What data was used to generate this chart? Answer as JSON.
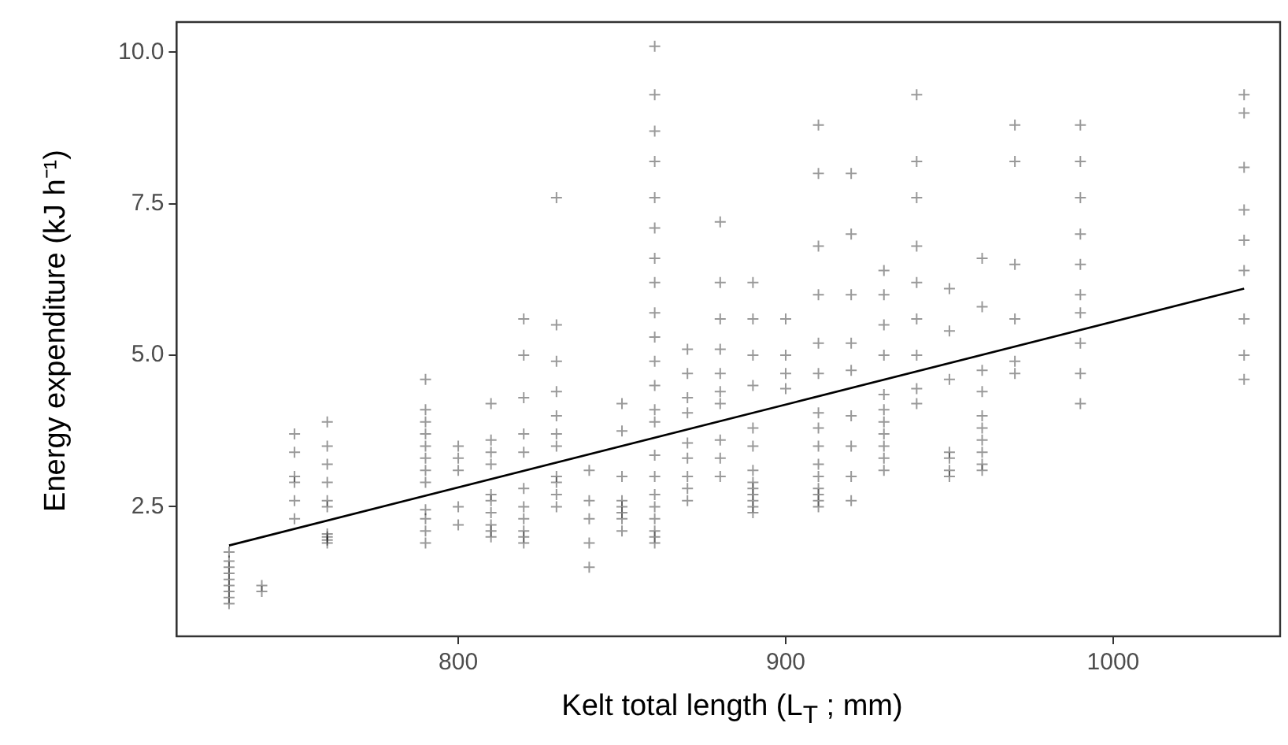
{
  "chart_data": {
    "type": "scatter",
    "xlabel": "Kelt total length (L$_{T}$ ; mm)",
    "ylabel": "Energy expenditure (kJ h⁻¹)",
    "xlim": [
      714,
      1051
    ],
    "ylim": [
      0.36,
      10.5
    ],
    "xticks": [
      800,
      900,
      1000
    ],
    "yticks": [
      2.5,
      {
        "value": 5,
        "label": "5.0"
      },
      7.5,
      {
        "value": 10,
        "label": "10.0"
      }
    ],
    "grid": false,
    "legend": false,
    "marker": "cross",
    "series": [
      {
        "color": "#000000",
        "x": [
          730,
          730,
          730,
          730,
          730,
          730,
          730,
          730,
          730,
          740,
          740,
          750,
          750,
          750,
          750,
          750,
          750,
          760,
          760,
          760,
          760,
          760,
          760,
          760,
          760,
          760,
          760,
          790,
          790,
          790,
          790,
          790,
          790,
          790,
          790,
          790,
          790,
          790,
          790,
          800,
          800,
          800,
          800,
          800,
          810,
          810,
          810,
          810,
          810,
          810,
          810,
          810,
          810,
          810,
          820,
          820,
          820,
          820,
          820,
          820,
          820,
          820,
          820,
          820,
          820,
          830,
          830,
          830,
          830,
          830,
          830,
          830,
          830,
          830,
          830,
          830,
          840,
          840,
          840,
          840,
          840,
          850,
          850,
          850,
          850,
          850,
          850,
          850,
          850,
          860,
          860,
          860,
          860,
          860,
          860,
          860,
          860,
          860,
          860,
          860,
          860,
          860,
          860,
          860,
          860,
          860,
          860,
          860,
          860,
          860,
          860,
          870,
          870,
          870,
          870,
          870,
          870,
          870,
          870,
          870,
          880,
          880,
          880,
          880,
          880,
          880,
          880,
          880,
          880,
          880,
          890,
          890,
          890,
          890,
          890,
          890,
          890,
          890,
          890,
          890,
          890,
          890,
          890,
          900,
          900,
          900,
          900,
          910,
          910,
          910,
          910,
          910,
          910,
          910,
          910,
          910,
          910,
          910,
          910,
          910,
          910,
          910,
          920,
          920,
          920,
          920,
          920,
          920,
          920,
          920,
          920,
          930,
          930,
          930,
          930,
          930,
          930,
          930,
          930,
          930,
          930,
          930,
          940,
          940,
          940,
          940,
          940,
          940,
          940,
          940,
          940,
          950,
          950,
          950,
          950,
          950,
          950,
          950,
          960,
          960,
          960,
          960,
          960,
          960,
          960,
          960,
          960,
          960,
          970,
          970,
          970,
          970,
          970,
          970,
          990,
          990,
          990,
          990,
          990,
          990,
          990,
          990,
          990,
          990,
          1040,
          1040,
          1040,
          1040,
          1040,
          1040,
          1040,
          1040,
          1040
        ],
        "values": [
          0.9,
          1.0,
          1.1,
          1.2,
          1.3,
          1.4,
          1.5,
          1.6,
          1.75,
          1.1,
          1.2,
          2.3,
          2.6,
          2.9,
          3.0,
          3.4,
          3.7,
          1.9,
          1.95,
          2.0,
          2.05,
          2.5,
          2.6,
          2.9,
          3.2,
          3.5,
          3.9,
          1.9,
          2.1,
          2.3,
          2.45,
          2.9,
          3.1,
          3.3,
          3.5,
          3.7,
          3.9,
          4.1,
          4.6,
          2.2,
          2.5,
          3.1,
          3.3,
          3.5,
          2.0,
          2.1,
          2.2,
          2.4,
          2.6,
          2.7,
          3.2,
          3.4,
          3.6,
          4.2,
          1.9,
          2.0,
          2.1,
          2.3,
          2.5,
          2.8,
          3.4,
          3.7,
          4.3,
          5.0,
          5.6,
          2.5,
          2.7,
          2.9,
          3.0,
          3.5,
          3.7,
          4.0,
          4.4,
          4.9,
          5.5,
          7.6,
          1.5,
          1.9,
          2.3,
          2.6,
          3.1,
          2.1,
          2.3,
          2.4,
          2.5,
          2.6,
          3.0,
          3.75,
          4.2,
          1.9,
          2.0,
          2.1,
          2.3,
          2.5,
          2.7,
          3.0,
          3.35,
          3.9,
          4.1,
          4.5,
          4.9,
          5.3,
          5.7,
          6.2,
          6.6,
          7.1,
          7.6,
          8.2,
          8.7,
          9.3,
          10.1,
          2.6,
          2.8,
          3.0,
          3.3,
          3.55,
          4.05,
          4.3,
          4.7,
          5.1,
          3.0,
          3.3,
          3.6,
          4.2,
          4.4,
          4.7,
          5.1,
          5.6,
          6.2,
          7.2,
          2.4,
          2.5,
          2.6,
          2.7,
          2.8,
          2.9,
          3.1,
          3.5,
          3.8,
          4.5,
          5.0,
          5.6,
          6.2,
          4.45,
          4.7,
          5.0,
          5.6,
          2.5,
          2.6,
          2.7,
          2.8,
          3.0,
          3.2,
          3.5,
          3.8,
          4.05,
          4.7,
          5.2,
          6.0,
          6.8,
          8.0,
          8.8,
          2.6,
          3.0,
          3.5,
          4.0,
          4.75,
          5.2,
          6.0,
          7.0,
          8.0,
          3.1,
          3.3,
          3.5,
          3.7,
          3.9,
          4.1,
          4.35,
          5.0,
          5.5,
          6.0,
          6.4,
          4.2,
          4.45,
          5.0,
          5.6,
          6.2,
          6.8,
          7.6,
          8.2,
          9.3,
          3.0,
          3.1,
          3.3,
          3.4,
          4.6,
          5.4,
          6.1,
          3.1,
          3.2,
          3.4,
          3.6,
          3.8,
          4.0,
          4.4,
          4.75,
          5.8,
          6.6,
          4.7,
          4.9,
          5.6,
          6.5,
          8.2,
          8.8,
          4.2,
          4.7,
          5.2,
          5.7,
          6.0,
          6.5,
          7.0,
          7.6,
          8.2,
          8.8,
          4.6,
          5.0,
          5.6,
          6.4,
          6.9,
          7.4,
          8.1,
          9.0,
          9.3
        ]
      },
      {
        "type": "line",
        "color": "#000000",
        "marker": "none",
        "x": [
          730,
          1040
        ],
        "values": [
          1.86,
          6.1
        ]
      }
    ]
  }
}
